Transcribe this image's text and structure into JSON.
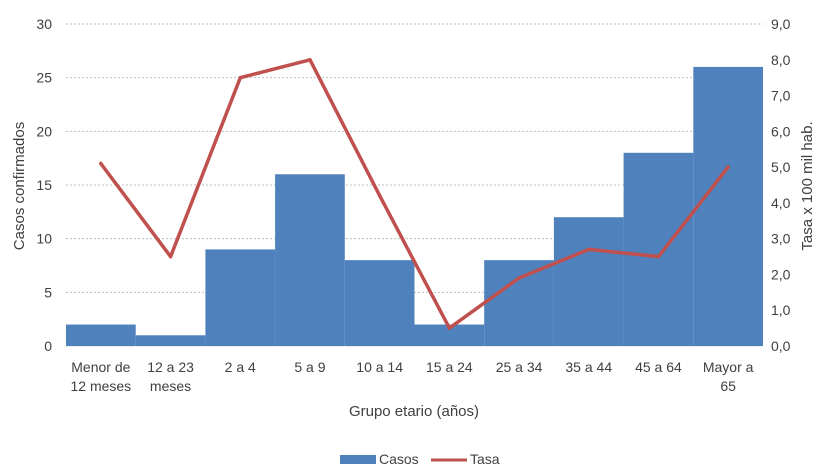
{
  "chart_data": {
    "type": "bar",
    "categories": [
      [
        "Menor de",
        "12 meses"
      ],
      [
        "12 a 23",
        "meses"
      ],
      [
        "2 a 4"
      ],
      [
        "5 a 9"
      ],
      [
        "10 a 14"
      ],
      [
        "15 a 24"
      ],
      [
        "25 a 34"
      ],
      [
        "35 a 44"
      ],
      [
        "45 a 64"
      ],
      [
        "Mayor a",
        "65"
      ]
    ],
    "series": [
      {
        "name": "Casos",
        "type": "bar",
        "axis": "left",
        "color": "#4F81BD",
        "values": [
          2,
          1,
          9,
          16,
          8,
          2,
          8,
          12,
          18,
          26
        ]
      },
      {
        "name": "Tasa",
        "type": "line",
        "axis": "right",
        "color": "#C0504D",
        "values": [
          5.1,
          2.5,
          7.5,
          8.0,
          4.2,
          0.5,
          1.9,
          2.7,
          2.5,
          5.0
        ]
      }
    ],
    "xlabel": "Grupo etario (años)",
    "ylabel": "Casos confirmados",
    "y2label": "Tasa x 100 mil hab.",
    "ylim": [
      0,
      30
    ],
    "y_ticks": [
      "0",
      "5",
      "10",
      "15",
      "20",
      "25",
      "30"
    ],
    "y2lim": [
      0,
      9
    ],
    "y2_ticks": [
      "0,0",
      "1,0",
      "2,0",
      "3,0",
      "4,0",
      "5,0",
      "6,0",
      "7,0",
      "8,0",
      "9,0"
    ],
    "grid": true,
    "legend_position": "bottom-center"
  }
}
